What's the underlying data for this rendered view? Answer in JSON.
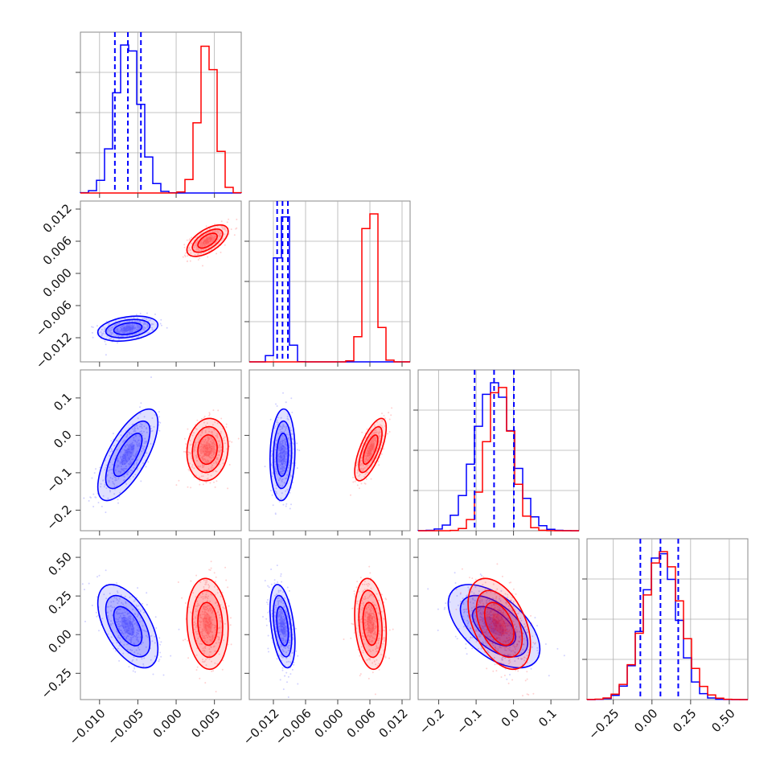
{
  "chart_data": {
    "type": "corner",
    "title": "",
    "parameters": 4,
    "colors": {
      "blue": "#0000ff",
      "red": "#ff0000"
    },
    "grid": true,
    "axes": [
      {
        "range": [
          -0.0125,
          0.0085
        ],
        "ticks": [
          -0.01,
          -0.005,
          0.0,
          0.005
        ],
        "tick_labels": [
          "−0.010",
          "−0.005",
          "0.000",
          "0.005"
        ]
      },
      {
        "range": [
          -0.0165,
          0.0135
        ],
        "ticks": [
          -0.012,
          -0.006,
          0.0,
          0.006,
          0.012
        ],
        "tick_labels": [
          "−0.012",
          "−0.006",
          "0.000",
          "0.006",
          "0.012"
        ]
      },
      {
        "range": [
          -0.255,
          0.175
        ],
        "ticks": [
          -0.2,
          -0.1,
          0.0,
          0.1
        ],
        "tick_labels": [
          "−0.2",
          "−0.1",
          "0.0",
          "0.1"
        ]
      },
      {
        "range": [
          -0.42,
          0.62
        ],
        "ticks": [
          -0.25,
          0.0,
          0.25,
          0.5
        ],
        "tick_labels": [
          "−0.25",
          "0.00",
          "0.25",
          "0.50"
        ]
      }
    ],
    "series": [
      {
        "color": "blue",
        "means": [
          -0.0063,
          -0.0103,
          -0.052,
          0.055
        ],
        "sds": [
          0.0016,
          0.00095,
          0.05,
          0.11
        ],
        "quantile_lines": [
          [
            -0.008,
            -0.0063,
            -0.0046
          ],
          [
            -0.0113,
            -0.0103,
            -0.0093
          ],
          [
            -0.104,
            -0.052,
            0.001
          ],
          [
            -0.075,
            0.055,
            0.17
          ]
        ]
      },
      {
        "color": "red",
        "means": [
          0.0041,
          0.0061,
          -0.038,
          0.07
        ],
        "sds": [
          0.0011,
          0.0012,
          0.034,
          0.12
        ]
      }
    ],
    "pairs": [
      {
        "row": 1,
        "col": 0,
        "blue_rho": 0.3,
        "red_rho": 0.6
      },
      {
        "row": 2,
        "col": 0,
        "blue_rho": 0.7,
        "red_rho": 0.1
      },
      {
        "row": 2,
        "col": 1,
        "blue_rho": 0.1,
        "red_rho": 0.7
      },
      {
        "row": 3,
        "col": 0,
        "blue_rho": -0.55,
        "red_rho": -0.1
      },
      {
        "row": 3,
        "col": 1,
        "blue_rho": -0.4,
        "red_rho": -0.2
      },
      {
        "row": 3,
        "col": 2,
        "blue_rho": -0.55,
        "red_rho": -0.45
      }
    ]
  }
}
